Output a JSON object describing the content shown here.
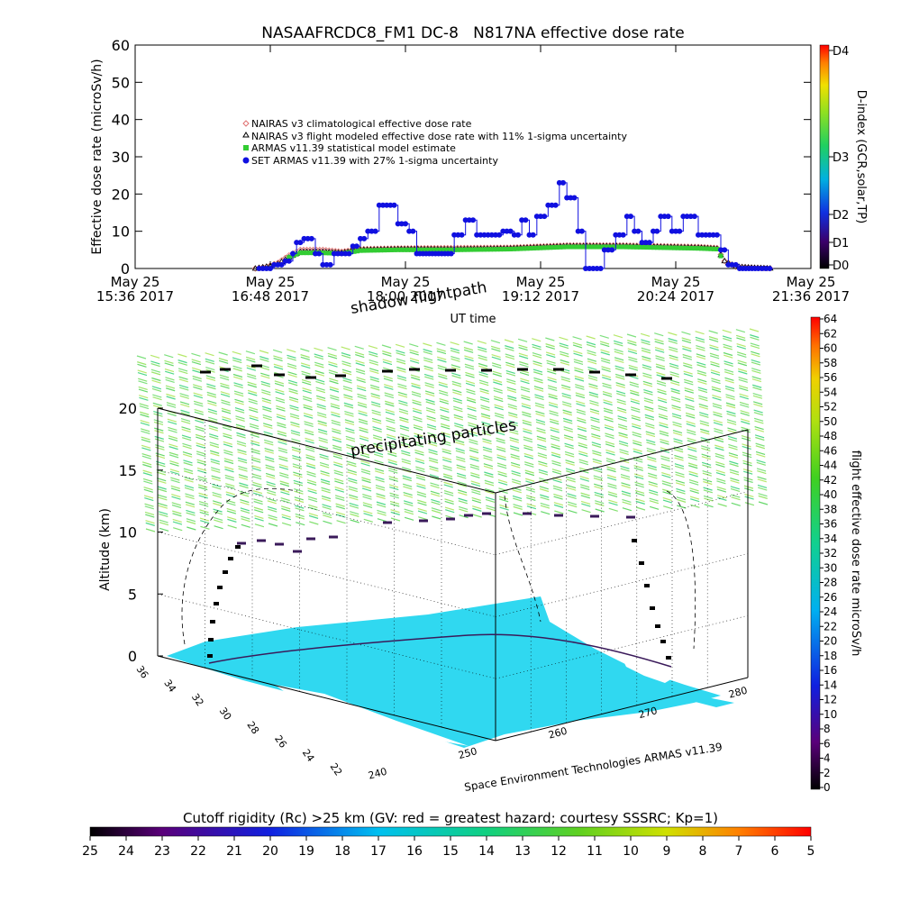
{
  "title": "NASAAFRCDC8_FM1 DC-8   N817NA effective dose rate",
  "colors": {
    "climatological": "#e07070",
    "modeled": "#000000",
    "statistical": "#33cc33",
    "set_armas": "#1010e0",
    "ocean": "#30d8f0",
    "ground_track": "#000000",
    "cruise_track": "#3a1a5a",
    "shadow_track": "#000000"
  },
  "chart_data": [
    {
      "type": "scatter",
      "title": "NASAAFRCDC8_FM1 DC-8   N817NA effective dose rate",
      "xlabel": "UT time",
      "ylabel": "Effective dose rate (microSv/h)",
      "ylim": [
        0,
        60
      ],
      "y_ticks": [
        "0",
        "10",
        "20",
        "30",
        "40",
        "50",
        "60"
      ],
      "x_ticks": [
        {
          "date": "May 25",
          "time": "15:36 2017"
        },
        {
          "date": "May 25",
          "time": "16:48 2017"
        },
        {
          "date": "May 25",
          "time": "18:00 2017"
        },
        {
          "date": "May 25",
          "time": "19:12 2017"
        },
        {
          "date": "May 25",
          "time": "20:24 2017"
        },
        {
          "date": "May 25",
          "time": "21:36 2017"
        }
      ],
      "xlim_minutes_after_1536": [
        0,
        360
      ],
      "legend_position": "inside-left",
      "series": [
        {
          "name": "NAIRAS v3 climatological effective dose rate",
          "marker": "diamond-open",
          "color": "#e07070",
          "points": [
            [
              64,
              0
            ],
            [
              70,
              0.5
            ],
            [
              76,
              1.5
            ],
            [
              82,
              3.5
            ],
            [
              88,
              5
            ],
            [
              100,
              5
            ],
            [
              110,
              4.5
            ],
            [
              120,
              5.2
            ],
            [
              140,
              5.4
            ],
            [
              170,
              5.5
            ],
            [
              200,
              5.6
            ],
            [
              230,
              6.2
            ],
            [
              260,
              6.2
            ],
            [
              280,
              6
            ],
            [
              300,
              5.8
            ],
            [
              310,
              5.5
            ],
            [
              314,
              2
            ],
            [
              320,
              0.5
            ],
            [
              330,
              0.2
            ],
            [
              340,
              0
            ]
          ]
        },
        {
          "name": "NAIRAS v3 flight modeled effective dose rate with 11% 1-sigma uncertainty",
          "marker": "triangle-open",
          "color": "#000000",
          "points": [
            [
              64,
              0
            ],
            [
              70,
              0.5
            ],
            [
              76,
              1.2
            ],
            [
              82,
              3
            ],
            [
              88,
              4.5
            ],
            [
              100,
              4.5
            ],
            [
              110,
              4.2
            ],
            [
              120,
              5
            ],
            [
              140,
              5.2
            ],
            [
              170,
              5.2
            ],
            [
              200,
              5.4
            ],
            [
              230,
              6
            ],
            [
              260,
              6
            ],
            [
              280,
              5.8
            ],
            [
              300,
              5.6
            ],
            [
              310,
              5.3
            ],
            [
              314,
              2
            ],
            [
              320,
              0.5
            ],
            [
              330,
              0.2
            ],
            [
              340,
              0
            ]
          ]
        },
        {
          "name": "ARMAS v11.39 statistical model estimate",
          "marker": "square",
          "color": "#33cc33",
          "points": [
            [
              82,
              3
            ],
            [
              88,
              4.2
            ],
            [
              100,
              4.2
            ],
            [
              110,
              4
            ],
            [
              120,
              4.8
            ],
            [
              140,
              5
            ],
            [
              170,
              5
            ],
            [
              200,
              5.2
            ],
            [
              230,
              5.8
            ],
            [
              260,
              5.8
            ],
            [
              280,
              5.6
            ],
            [
              300,
              5.4
            ],
            [
              310,
              5.2
            ],
            [
              314,
              1.5
            ]
          ]
        },
        {
          "name": "SET ARMAS v11.39 with 27% 1-sigma uncertainty",
          "marker": "circle",
          "color": "#1010e0",
          "points": [
            [
              66,
              0
            ],
            [
              74,
              1
            ],
            [
              80,
              2
            ],
            [
              84,
              4
            ],
            [
              86,
              7
            ],
            [
              90,
              8
            ],
            [
              96,
              4
            ],
            [
              100,
              1
            ],
            [
              106,
              4
            ],
            [
              110,
              4
            ],
            [
              116,
              6
            ],
            [
              120,
              8
            ],
            [
              124,
              10
            ],
            [
              130,
              17
            ],
            [
              136,
              17
            ],
            [
              140,
              12
            ],
            [
              146,
              10
            ],
            [
              150,
              4
            ],
            [
              160,
              4
            ],
            [
              170,
              9
            ],
            [
              176,
              13
            ],
            [
              182,
              9
            ],
            [
              190,
              9
            ],
            [
              196,
              10
            ],
            [
              202,
              9
            ],
            [
              206,
              13
            ],
            [
              210,
              9
            ],
            [
              214,
              14
            ],
            [
              220,
              17
            ],
            [
              226,
              23
            ],
            [
              230,
              19
            ],
            [
              236,
              10
            ],
            [
              240,
              0
            ],
            [
              246,
              0
            ],
            [
              250,
              5
            ],
            [
              256,
              9
            ],
            [
              262,
              14
            ],
            [
              266,
              10
            ],
            [
              270,
              7
            ],
            [
              276,
              10
            ],
            [
              280,
              14
            ],
            [
              286,
              10
            ],
            [
              292,
              14
            ],
            [
              300,
              9
            ],
            [
              306,
              9
            ],
            [
              312,
              5
            ],
            [
              316,
              1
            ],
            [
              322,
              0
            ],
            [
              332,
              0
            ],
            [
              340,
              0
            ]
          ]
        }
      ]
    },
    {
      "type": "colorbar",
      "axis_label": "D-index (GCR,solar,TP)",
      "ticks": [
        "D0",
        "D1",
        "D2",
        "D3",
        "D4"
      ]
    },
    {
      "type": "scatter",
      "title": "",
      "zlabel": "Altitude (km)",
      "z_ticks": [
        "0",
        "5",
        "10",
        "15",
        "20"
      ],
      "latitude_ticks": [
        "36",
        "34",
        "32",
        "30",
        "28",
        "26",
        "24",
        "22"
      ],
      "longitude_ticks": [
        "240",
        "250",
        "260",
        "270",
        "280"
      ],
      "annotations": [
        "shadow flightpath",
        "precipitating particles"
      ],
      "credit": "Space Environment Technologies ARMAS v11.39",
      "track_altitude_km": [
        0,
        2,
        4,
        6,
        8,
        9.5,
        9.2,
        8.8,
        9.5,
        10,
        11,
        11.5,
        11.8,
        11.5,
        11.4,
        8,
        5,
        2,
        0
      ]
    },
    {
      "type": "colorbar",
      "axis_label": "flight effective dose rate microSv/h",
      "ticks": [
        "0",
        "2",
        "4",
        "6",
        "8",
        "10",
        "12",
        "14",
        "16",
        "18",
        "20",
        "22",
        "24",
        "26",
        "28",
        "30",
        "32",
        "34",
        "36",
        "38",
        "40",
        "42",
        "44",
        "46",
        "48",
        "50",
        "52",
        "54",
        "56",
        "58",
        "60",
        "62",
        "64"
      ]
    },
    {
      "type": "colorbar",
      "title": "Cutoff rigidity (Rc) >25 km (GV: red = greatest hazard; courtesy SSSRC; Kp=1)",
      "ticks": [
        "25",
        "24",
        "23",
        "22",
        "21",
        "20",
        "19",
        "18",
        "17",
        "16",
        "15",
        "14",
        "13",
        "12",
        "11",
        "10",
        "9",
        "8",
        "7",
        "6",
        "5"
      ]
    }
  ]
}
